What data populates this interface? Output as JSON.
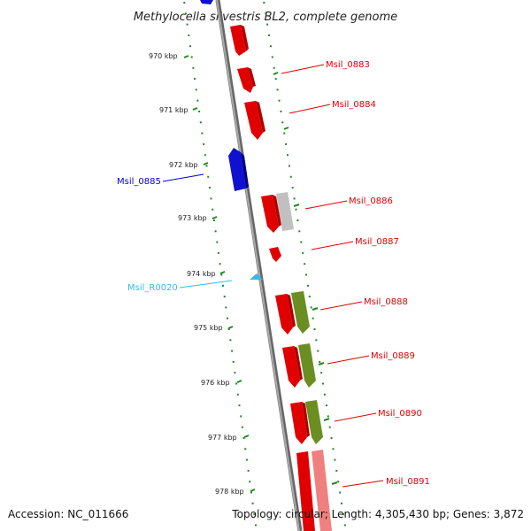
{
  "title": "Methylocella silvestris BL2, complete genome",
  "accession": "Accession: NC_011666",
  "topology": "Topology: circular; Length: 4,305,430 bp; Genes: 3,872",
  "ticks": [
    "970 kbp",
    "971 kbp",
    "972 kbp",
    "973 kbp",
    "974 kbp",
    "975 kbp",
    "976 kbp",
    "977 kbp",
    "978 kbp"
  ],
  "colors": {
    "forward_gene": "#ee0000",
    "reverse_gene": "#0000dd",
    "rna": "#33bbee",
    "backbone": "#888888",
    "tick": "#228822",
    "gray_feature": "#bbbbbb",
    "olive_feature": "#6b8e23",
    "pink_feature": "#f08080"
  },
  "genes": [
    {
      "label": "Msil_0883",
      "strand": "forward"
    },
    {
      "label": "Msil_0884",
      "strand": "forward"
    },
    {
      "label": "Msil_0885",
      "strand": "reverse"
    },
    {
      "label": "Msil_0886",
      "strand": "forward"
    },
    {
      "label": "Msil_0887",
      "strand": "forward"
    },
    {
      "label": "Msil_R0020",
      "strand": "rna"
    },
    {
      "label": "Msil_0888",
      "strand": "forward"
    },
    {
      "label": "Msil_0889",
      "strand": "forward"
    },
    {
      "label": "Msil_0890",
      "strand": "forward"
    },
    {
      "label": "Msil_0891",
      "strand": "forward"
    }
  ]
}
